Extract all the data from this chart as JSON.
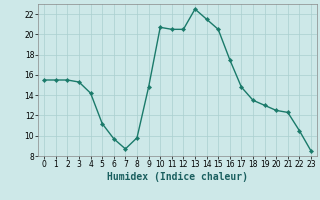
{
  "x": [
    0,
    1,
    2,
    3,
    4,
    5,
    6,
    7,
    8,
    9,
    10,
    11,
    12,
    13,
    14,
    15,
    16,
    17,
    18,
    19,
    20,
    21,
    22,
    23
  ],
  "y": [
    15.5,
    15.5,
    15.5,
    15.3,
    14.2,
    11.2,
    9.7,
    8.7,
    9.8,
    14.8,
    20.7,
    20.5,
    20.5,
    22.5,
    21.5,
    20.5,
    17.5,
    14.8,
    13.5,
    13.0,
    12.5,
    12.3,
    10.5,
    8.5
  ],
  "line_color": "#1a7a6a",
  "marker": "D",
  "markersize": 2.2,
  "linewidth": 1.0,
  "background_color": "#cde8e8",
  "grid_color": "#aacfcf",
  "xlabel": "Humidex (Indice chaleur)",
  "xlabel_fontsize": 7,
  "xlim": [
    -0.5,
    23.5
  ],
  "ylim": [
    8,
    23
  ],
  "yticks": [
    8,
    10,
    12,
    14,
    16,
    18,
    20,
    22
  ],
  "xticks": [
    0,
    1,
    2,
    3,
    4,
    5,
    6,
    7,
    8,
    9,
    10,
    11,
    12,
    13,
    14,
    15,
    16,
    17,
    18,
    19,
    20,
    21,
    22,
    23
  ],
  "tick_fontsize": 5.5,
  "spine_color": "#888888"
}
